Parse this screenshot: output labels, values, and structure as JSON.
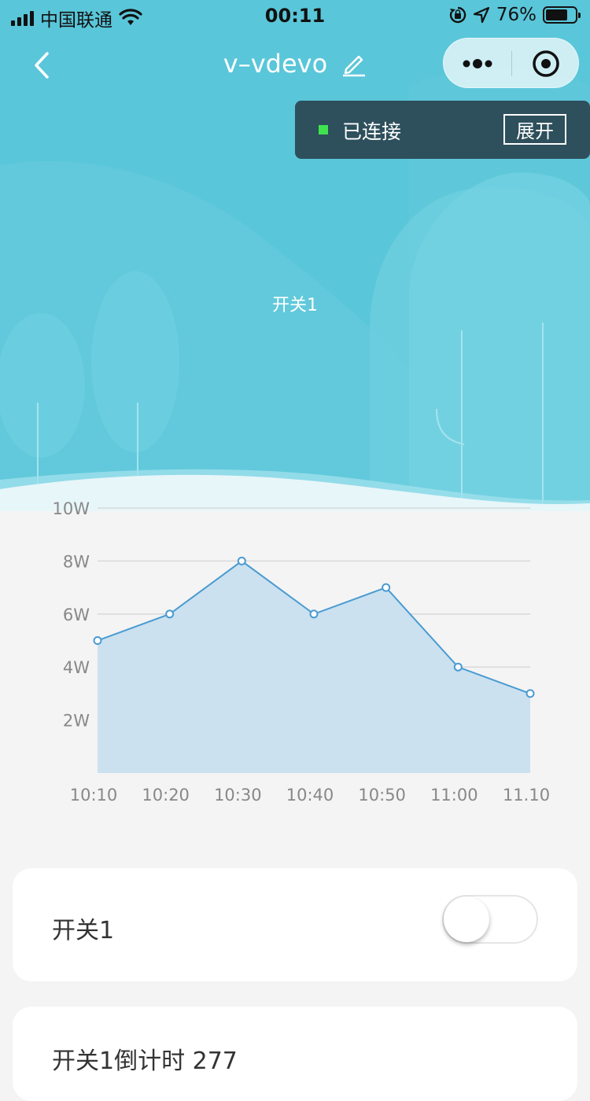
{
  "status_bar": {
    "carrier": "中国联通",
    "time": "00:11",
    "battery": "76%"
  },
  "nav": {
    "title": "v–vdevo"
  },
  "connection": {
    "status": "已连接",
    "expand_label": "展开"
  },
  "hero": {
    "label": "开关1"
  },
  "chart_data": {
    "type": "area",
    "x": [
      "10:10",
      "10:20",
      "10:30",
      "10:40",
      "10:50",
      "11:00",
      "11.10"
    ],
    "values": [
      5,
      6,
      8,
      6,
      7,
      4,
      3
    ],
    "y_ticks": [
      "2W",
      "4W",
      "6W",
      "8W",
      "10W"
    ],
    "ylim": [
      0,
      10
    ],
    "grid": true,
    "colors": {
      "line": "#4a9bd2",
      "fill": "#cbe1ef",
      "grid": "#d9d9d9"
    }
  },
  "cards": [
    {
      "label": "开关1",
      "toggle_on": false
    },
    {
      "label": "开关1倒计时 277"
    }
  ],
  "colors": {
    "hero_bg": "#5ac6d9",
    "connection_bg": "#2e4f5c",
    "connected_dot": "#3ee34f"
  }
}
